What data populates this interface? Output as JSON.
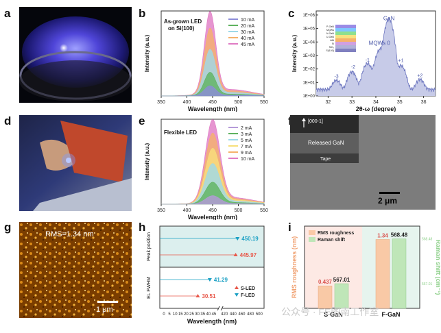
{
  "panels": {
    "a": {
      "letter": "a"
    },
    "b": {
      "letter": "b"
    },
    "c": {
      "letter": "c"
    },
    "d": {
      "letter": "d"
    },
    "e": {
      "letter": "e"
    },
    "f": {
      "letter": "f"
    },
    "g": {
      "letter": "g"
    },
    "h": {
      "letter": "h"
    },
    "i": {
      "letter": "i"
    }
  },
  "photo_f": {
    "arrow_label": "[000-1]",
    "layer1": "Released GaN",
    "layer2": "Tape",
    "scale": "2 μm"
  },
  "photo_g": {
    "rms": "RMS=1.34 nm",
    "scale": "1 μm"
  },
  "watermark": "公众号 · FE图南工作室",
  "colors": {
    "c_10": "#8c8cd8",
    "c_20": "#5fb35f",
    "c_30": "#9dd9e8",
    "c_40": "#f5b26b",
    "c_45": "#e07bc4",
    "c_2": "#b59ad9",
    "c_3": "#5fb35f",
    "c_5": "#9dd9e8",
    "c_7": "#f7e07a",
    "c_9": "#f5b26b",
    "c_10e": "#e07bc4",
    "s_led": "#e8584a",
    "f_led": "#1aa0c4",
    "rms_bar": "#f9c9a6",
    "raman_bar": "#bfe6b8"
  },
  "chart_data": [
    {
      "id": "b",
      "type": "area",
      "title": "As-grown LED on Si(100)",
      "xlabel": "Wavelength (nm)",
      "ylabel": "Intensity (a.u.)",
      "xlim": [
        350,
        550
      ],
      "xticks": [
        "350",
        "400",
        "450",
        "500",
        "550"
      ],
      "peak_nm": 445,
      "series": [
        {
          "name": "10 mA",
          "peak": 0.12
        },
        {
          "name": "20 mA",
          "peak": 0.28
        },
        {
          "name": "30 mA",
          "peak": 0.55
        },
        {
          "name": "40 mA",
          "peak": 0.8
        },
        {
          "name": "45 mA",
          "peak": 1.0
        }
      ]
    },
    {
      "id": "c",
      "type": "line",
      "xlabel": "2θ-ω (degree)",
      "ylabel": "Intensity (a.u.)",
      "xlim": [
        31.5,
        36.5
      ],
      "ylog": [
        1,
        1000000
      ],
      "xticks": [
        "32",
        "33",
        "34",
        "35",
        "36"
      ],
      "yticks": [
        "1E+00",
        "1E+01",
        "1E+02",
        "1E+03",
        "1E+04",
        "1E+05",
        "1E+06"
      ],
      "annotations": [
        {
          "label": "GaN",
          "x": 34.55,
          "y": 400000
        },
        {
          "label": "MQWs 0",
          "x": 34.15,
          "y": 6000
        },
        {
          "label": "-1",
          "x": 33.65,
          "y": 350
        },
        {
          "label": "-2",
          "x": 33.05,
          "y": 110
        },
        {
          "label": "-3",
          "x": 32.35,
          "y": 22
        },
        {
          "label": "+1",
          "x": 35.05,
          "y": 320
        },
        {
          "label": "+2",
          "x": 35.85,
          "y": 25
        }
      ],
      "peaks": [
        {
          "x": 32.35,
          "y": 12
        },
        {
          "x": 33.0,
          "y": 60
        },
        {
          "x": 33.65,
          "y": 250
        },
        {
          "x": 34.2,
          "y": 3000
        },
        {
          "x": 34.55,
          "y": 500000
        },
        {
          "x": 35.05,
          "y": 180
        },
        {
          "x": 35.85,
          "y": 14
        }
      ],
      "layers": [
        "P-GaN",
        "MQWs",
        "N-GaN",
        "U-GaN",
        "AlN",
        "Si",
        "SiO₂",
        "Si(100)"
      ]
    },
    {
      "id": "e",
      "type": "area",
      "title": "Flexible LED",
      "xlabel": "Wavelength (nm)",
      "ylabel": "Intensity (a.u.)",
      "xlim": [
        350,
        550
      ],
      "xticks": [
        "350",
        "400",
        "450",
        "500",
        "550"
      ],
      "peak_nm": 450,
      "series": [
        {
          "name": "2 mA",
          "peak": 0.1
        },
        {
          "name": "3 mA",
          "peak": 0.26
        },
        {
          "name": "5 mA",
          "peak": 0.48
        },
        {
          "name": "7 mA",
          "peak": 0.66
        },
        {
          "name": "9 mA",
          "peak": 0.84
        },
        {
          "name": "10 mA",
          "peak": 1.0
        }
      ]
    },
    {
      "id": "h",
      "type": "scatter",
      "xlabel": "Wavelength (nm)",
      "xticks_left": [
        "0",
        "5",
        "10",
        "15",
        "20",
        "25",
        "30",
        "35",
        "40",
        "45"
      ],
      "xticks_right": [
        "420",
        "440",
        "460",
        "480",
        "500"
      ],
      "ylabel_top": "Peak position",
      "ylabel_bottom": "EL FWHM",
      "legend": [
        "S-LED",
        "F-LED"
      ],
      "points": [
        {
          "group": "Peak position",
          "series": "F-LED",
          "value": 450.19,
          "label": "450.19"
        },
        {
          "group": "Peak position",
          "series": "S-LED",
          "value": 445.97,
          "label": "445.97"
        },
        {
          "group": "EL FWHM",
          "series": "F-LED",
          "value": 41.29,
          "label": "41.29"
        },
        {
          "group": "EL FWHM",
          "series": "S-LED",
          "value": 30.51,
          "label": "30.51"
        }
      ]
    },
    {
      "id": "i",
      "type": "bar",
      "categories": [
        "S-GaN",
        "F-GaN"
      ],
      "ylabel_left": "RMS roughness (nm)",
      "ylabel_right": "Raman shift (cm⁻¹)",
      "right_ticks": [
        "568.48",
        "567.01"
      ],
      "legend": [
        "RMS roughness",
        "Raman shift"
      ],
      "series": [
        {
          "name": "RMS roughness",
          "values": [
            0.437,
            1.34
          ],
          "labels": [
            "0.437",
            "1.34"
          ]
        },
        {
          "name": "Raman shift",
          "values": [
            567.01,
            568.48
          ],
          "labels": [
            "567.01",
            "568.48"
          ]
        }
      ]
    }
  ]
}
